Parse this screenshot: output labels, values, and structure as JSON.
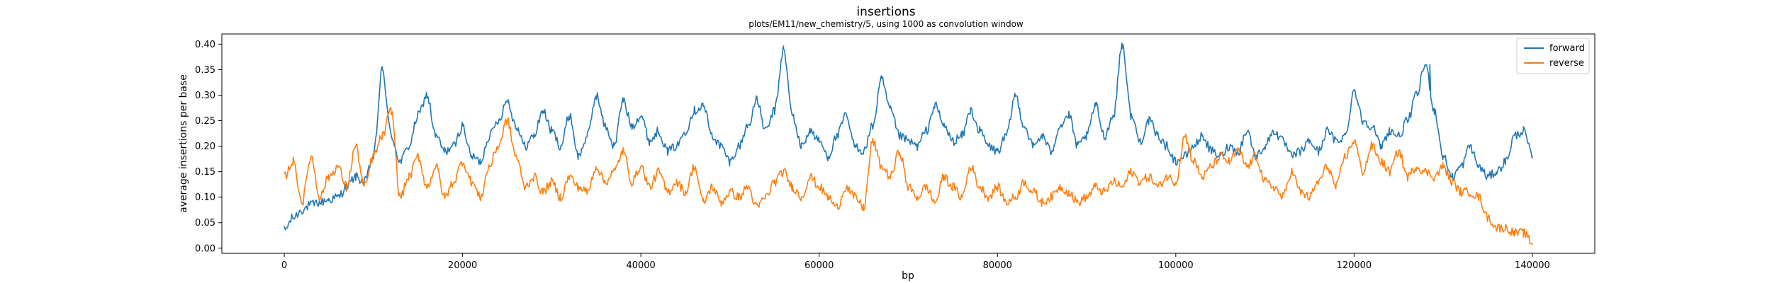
{
  "chart_data": {
    "type": "line",
    "title": "insertions",
    "subtitle": "plots/EM11/new_chemistry/5, using 1000 as convolution window",
    "xlabel": "bp",
    "ylabel": "average insertions per base",
    "xlim": [
      -7000,
      147000
    ],
    "ylim": [
      -0.01,
      0.42
    ],
    "xticks": [
      0,
      20000,
      40000,
      60000,
      80000,
      100000,
      120000,
      140000
    ],
    "yticks": [
      0.0,
      0.05,
      0.1,
      0.15,
      0.2,
      0.25,
      0.3,
      0.35,
      0.4
    ],
    "legend_position": "top-right",
    "grid": false,
    "series": [
      {
        "name": "forward",
        "color": "#1f77b4",
        "x": [
          0,
          1000,
          2000,
          3000,
          4000,
          5000,
          6000,
          7000,
          8000,
          9000,
          10000,
          11000,
          12000,
          13000,
          14000,
          15000,
          16000,
          17000,
          18000,
          19000,
          20000,
          21000,
          22000,
          23000,
          24000,
          25000,
          26000,
          27000,
          28000,
          29000,
          30000,
          31000,
          32000,
          33000,
          34000,
          35000,
          36000,
          37000,
          38000,
          39000,
          40000,
          41000,
          42000,
          43000,
          44000,
          45000,
          46000,
          47000,
          48000,
          49000,
          50000,
          51000,
          52000,
          53000,
          54000,
          55000,
          56000,
          57000,
          58000,
          59000,
          60000,
          61000,
          62000,
          63000,
          64000,
          65000,
          66000,
          67000,
          68000,
          69000,
          70000,
          71000,
          72000,
          73000,
          74000,
          75000,
          76000,
          77000,
          78000,
          79000,
          80000,
          81000,
          82000,
          83000,
          84000,
          85000,
          86000,
          87000,
          88000,
          89000,
          90000,
          91000,
          92000,
          93000,
          94000,
          95000,
          96000,
          97000,
          98000,
          99000,
          100000,
          101000,
          102000,
          103000,
          104000,
          105000,
          106000,
          107000,
          108000,
          109000,
          110000,
          111000,
          112000,
          113000,
          114000,
          115000,
          116000,
          117000,
          118000,
          119000,
          120000,
          121000,
          122000,
          123000,
          124000,
          125000,
          126000,
          127000,
          128000,
          129000,
          130000,
          131000,
          132000,
          133000,
          134000,
          135000,
          136000,
          137000,
          138000,
          139000,
          140000
        ],
        "y": [
          0.035,
          0.06,
          0.075,
          0.085,
          0.09,
          0.095,
          0.1,
          0.12,
          0.14,
          0.13,
          0.18,
          0.35,
          0.22,
          0.17,
          0.2,
          0.26,
          0.3,
          0.22,
          0.19,
          0.2,
          0.24,
          0.18,
          0.17,
          0.22,
          0.25,
          0.29,
          0.24,
          0.2,
          0.22,
          0.27,
          0.23,
          0.2,
          0.26,
          0.18,
          0.22,
          0.3,
          0.24,
          0.2,
          0.29,
          0.24,
          0.26,
          0.21,
          0.23,
          0.19,
          0.2,
          0.23,
          0.27,
          0.28,
          0.22,
          0.2,
          0.17,
          0.2,
          0.24,
          0.29,
          0.23,
          0.27,
          0.39,
          0.26,
          0.2,
          0.23,
          0.21,
          0.18,
          0.22,
          0.26,
          0.2,
          0.19,
          0.24,
          0.33,
          0.27,
          0.22,
          0.21,
          0.2,
          0.23,
          0.28,
          0.24,
          0.21,
          0.22,
          0.27,
          0.23,
          0.2,
          0.19,
          0.22,
          0.3,
          0.24,
          0.2,
          0.22,
          0.19,
          0.24,
          0.26,
          0.2,
          0.22,
          0.28,
          0.22,
          0.26,
          0.4,
          0.26,
          0.21,
          0.25,
          0.22,
          0.2,
          0.17,
          0.18,
          0.2,
          0.22,
          0.19,
          0.18,
          0.2,
          0.19,
          0.23,
          0.18,
          0.2,
          0.23,
          0.21,
          0.18,
          0.19,
          0.21,
          0.19,
          0.23,
          0.21,
          0.22,
          0.31,
          0.25,
          0.24,
          0.2,
          0.23,
          0.22,
          0.25,
          0.3,
          0.36,
          0.27,
          0.18,
          0.14,
          0.16,
          0.2,
          0.16,
          0.14,
          0.15,
          0.17,
          0.22,
          0.23,
          0.18
        ],
        "peaks": [
          {
            "x": 11000,
            "y": 0.35
          },
          {
            "x": 56000,
            "y": 0.39
          },
          {
            "x": 94000,
            "y": 0.4
          },
          {
            "x": 128500,
            "y": 0.36
          }
        ]
      },
      {
        "name": "reverse",
        "color": "#ff7f0e",
        "x": [
          0,
          1000,
          2000,
          3000,
          4000,
          5000,
          6000,
          7000,
          8000,
          9000,
          10000,
          11000,
          12000,
          13000,
          14000,
          15000,
          16000,
          17000,
          18000,
          19000,
          20000,
          21000,
          22000,
          23000,
          24000,
          25000,
          26000,
          27000,
          28000,
          29000,
          30000,
          31000,
          32000,
          33000,
          34000,
          35000,
          36000,
          37000,
          38000,
          39000,
          40000,
          41000,
          42000,
          43000,
          44000,
          45000,
          46000,
          47000,
          48000,
          49000,
          50000,
          51000,
          52000,
          53000,
          54000,
          55000,
          56000,
          57000,
          58000,
          59000,
          60000,
          61000,
          62000,
          63000,
          64000,
          65000,
          66000,
          67000,
          68000,
          69000,
          70000,
          71000,
          72000,
          73000,
          74000,
          75000,
          76000,
          77000,
          78000,
          79000,
          80000,
          81000,
          82000,
          83000,
          84000,
          85000,
          86000,
          87000,
          88000,
          89000,
          90000,
          91000,
          92000,
          93000,
          94000,
          95000,
          96000,
          97000,
          98000,
          99000,
          100000,
          101000,
          102000,
          103000,
          104000,
          105000,
          106000,
          107000,
          108000,
          109000,
          110000,
          111000,
          112000,
          113000,
          114000,
          115000,
          116000,
          117000,
          118000,
          119000,
          120000,
          121000,
          122000,
          123000,
          124000,
          125000,
          126000,
          127000,
          128000,
          129000,
          130000,
          131000,
          132000,
          133000,
          134000,
          135000,
          136000,
          137000,
          138000,
          139000,
          140000
        ],
        "y": [
          0.14,
          0.17,
          0.09,
          0.18,
          0.1,
          0.14,
          0.16,
          0.12,
          0.2,
          0.12,
          0.18,
          0.22,
          0.27,
          0.1,
          0.14,
          0.18,
          0.12,
          0.16,
          0.1,
          0.13,
          0.17,
          0.13,
          0.1,
          0.16,
          0.2,
          0.25,
          0.18,
          0.12,
          0.14,
          0.11,
          0.13,
          0.1,
          0.14,
          0.12,
          0.11,
          0.16,
          0.13,
          0.15,
          0.19,
          0.13,
          0.16,
          0.12,
          0.15,
          0.11,
          0.13,
          0.11,
          0.16,
          0.09,
          0.12,
          0.09,
          0.11,
          0.1,
          0.12,
          0.08,
          0.1,
          0.13,
          0.15,
          0.12,
          0.1,
          0.14,
          0.12,
          0.1,
          0.08,
          0.12,
          0.1,
          0.08,
          0.21,
          0.16,
          0.14,
          0.19,
          0.12,
          0.1,
          0.12,
          0.09,
          0.14,
          0.12,
          0.1,
          0.16,
          0.12,
          0.1,
          0.12,
          0.09,
          0.1,
          0.13,
          0.11,
          0.09,
          0.1,
          0.12,
          0.11,
          0.09,
          0.1,
          0.12,
          0.11,
          0.13,
          0.12,
          0.15,
          0.13,
          0.14,
          0.12,
          0.14,
          0.13,
          0.22,
          0.17,
          0.14,
          0.16,
          0.18,
          0.17,
          0.19,
          0.16,
          0.18,
          0.13,
          0.12,
          0.1,
          0.15,
          0.11,
          0.1,
          0.13,
          0.16,
          0.12,
          0.18,
          0.21,
          0.15,
          0.2,
          0.17,
          0.15,
          0.19,
          0.14,
          0.16,
          0.15,
          0.14,
          0.16,
          0.13,
          0.11,
          0.11,
          0.1,
          0.06,
          0.04,
          0.04,
          0.03,
          0.03,
          0.01
        ]
      }
    ]
  }
}
